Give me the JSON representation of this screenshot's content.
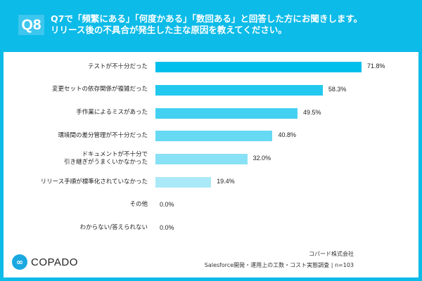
{
  "header": {
    "badge": "Q8",
    "line1": "Q7で「頻繁にある」「何度かある」「数回ある」と回答した方にお聞きします。",
    "line2": "リリース後の不具合が発生した主な原因を教えてください。"
  },
  "chart_data": {
    "type": "bar",
    "orientation": "horizontal",
    "categories": [
      "テストが不十分だった",
      "変更セットの依存関係が複雑だった",
      "手作業によるミスがあった",
      "環境間の差分管理が不十分だった",
      "ドキュメントが不十分で\n引き継ぎがうまくいかなかった",
      "リリース手順が標準化されていなかった",
      "その他",
      "わからない/答えられない"
    ],
    "values": [
      71.8,
      58.3,
      49.5,
      40.8,
      32.0,
      19.4,
      0.0,
      0.0
    ],
    "value_labels": [
      "71.8%",
      "58.3%",
      "49.5%",
      "40.8%",
      "32.0%",
      "19.4%",
      "0.0%",
      "0.0%"
    ],
    "colors": [
      "#00bfec",
      "#22c8ee",
      "#44d0f0",
      "#66d9f3",
      "#88e1f5",
      "#aae9f8",
      "#cceff9",
      "#cceff9"
    ],
    "unit": "%",
    "xlim": [
      0,
      100
    ]
  },
  "footer": {
    "logo": "COPADO",
    "company": "コパード株式会社",
    "source": "Salesforce開発・運用上の工数・コスト実態調査 | n=103"
  }
}
